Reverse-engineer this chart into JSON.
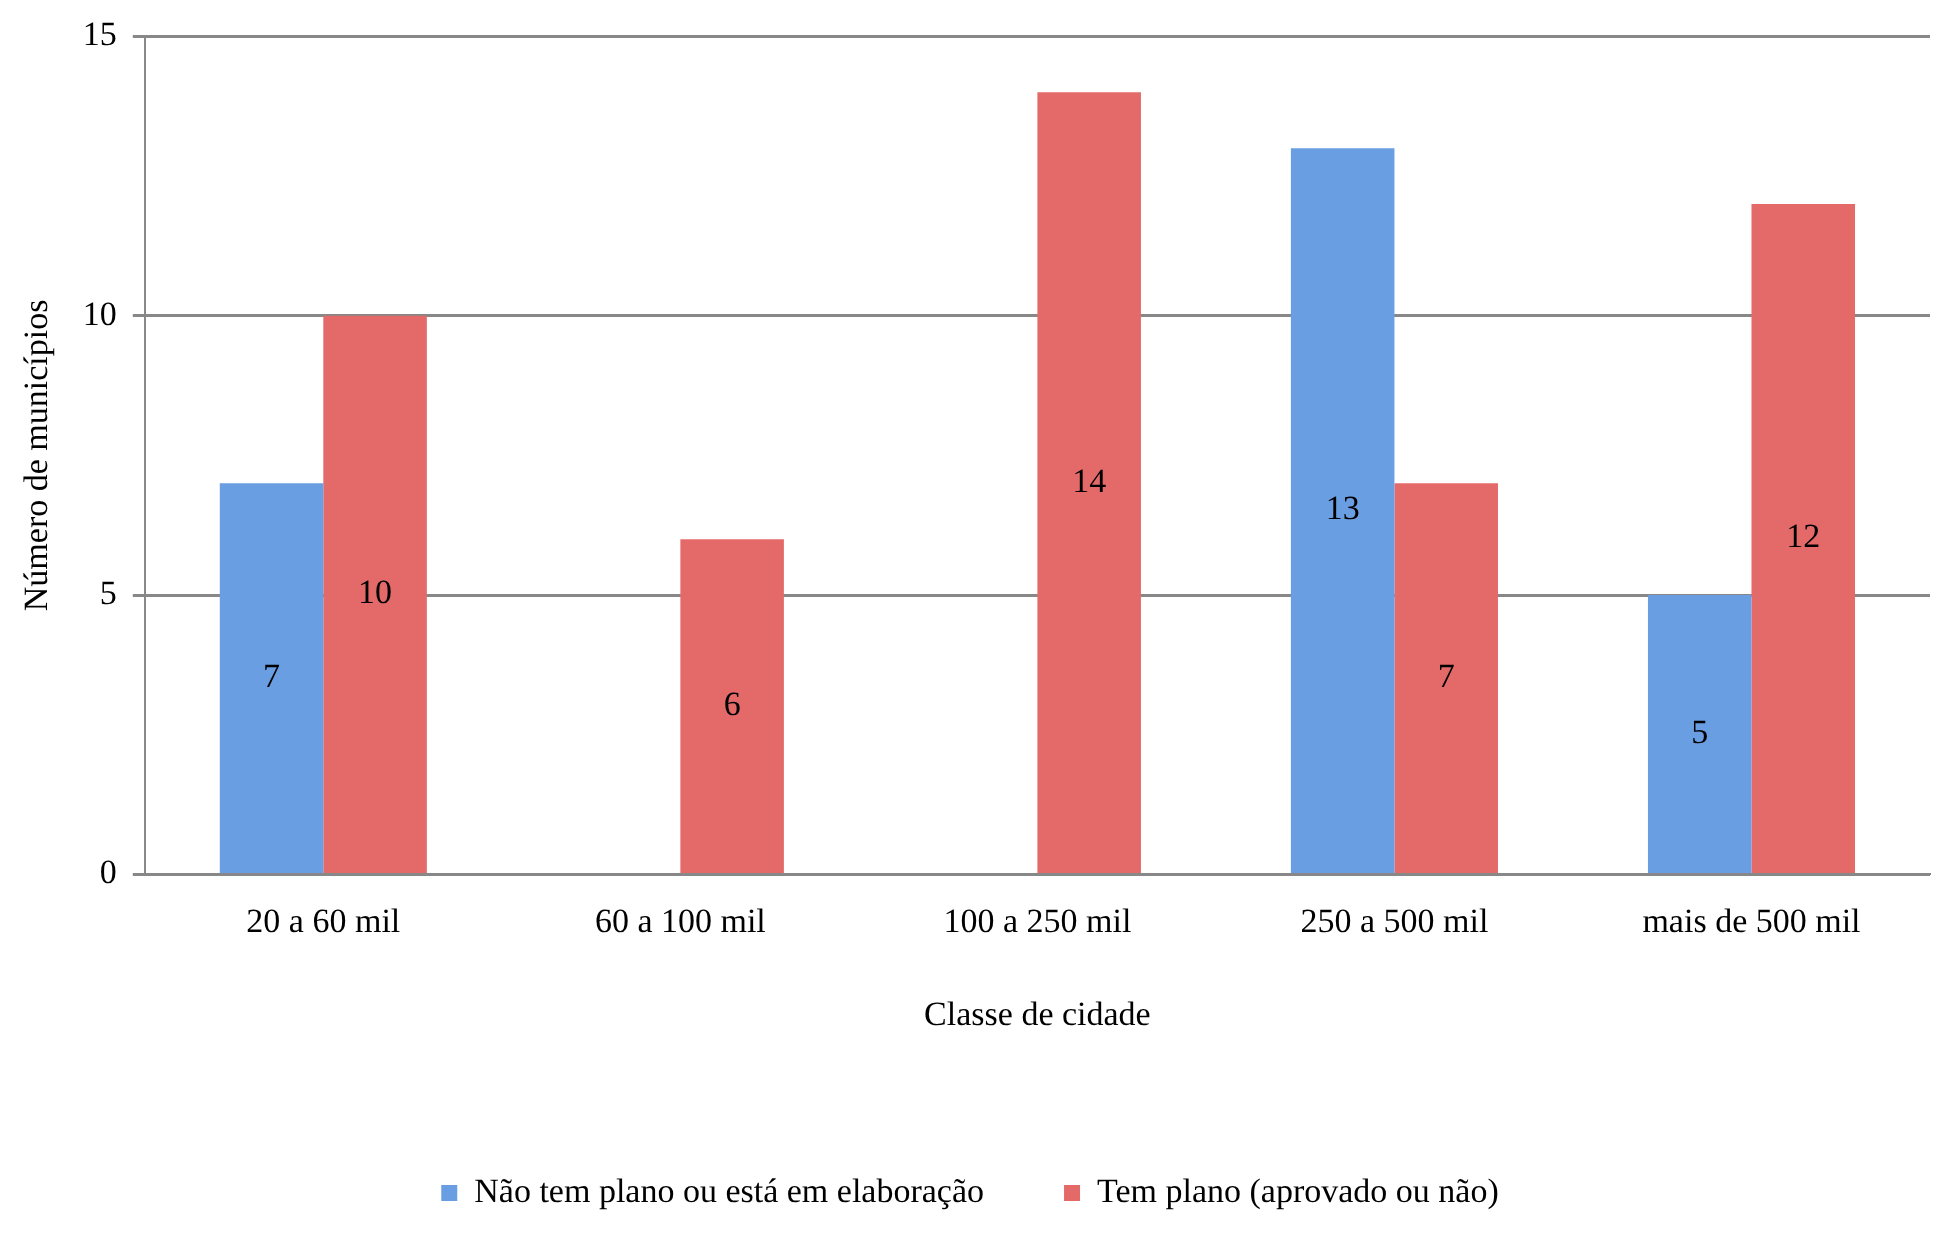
{
  "chart_data": {
    "type": "bar",
    "xlabel": "Classe de cidade",
    "ylabel": "Número de municípios",
    "categories": [
      "20 a 60 mil",
      "60 a 100 mil",
      "100 a 250 mil",
      "250 a 500 mil",
      "mais de 500 mil"
    ],
    "series": [
      {
        "name": "Não tem plano ou está em elaboração",
        "color": "#6a9ee3",
        "values": [
          7,
          null,
          null,
          13,
          5
        ]
      },
      {
        "name": "Tem plano (aprovado ou não)",
        "color": "#e46a6a",
        "values": [
          10,
          6,
          14,
          7,
          12
        ]
      }
    ],
    "ylim": [
      0,
      15
    ],
    "yticks": [
      0,
      5,
      10,
      15
    ],
    "grid": "y",
    "legend": "bottom",
    "data_labels": true
  }
}
